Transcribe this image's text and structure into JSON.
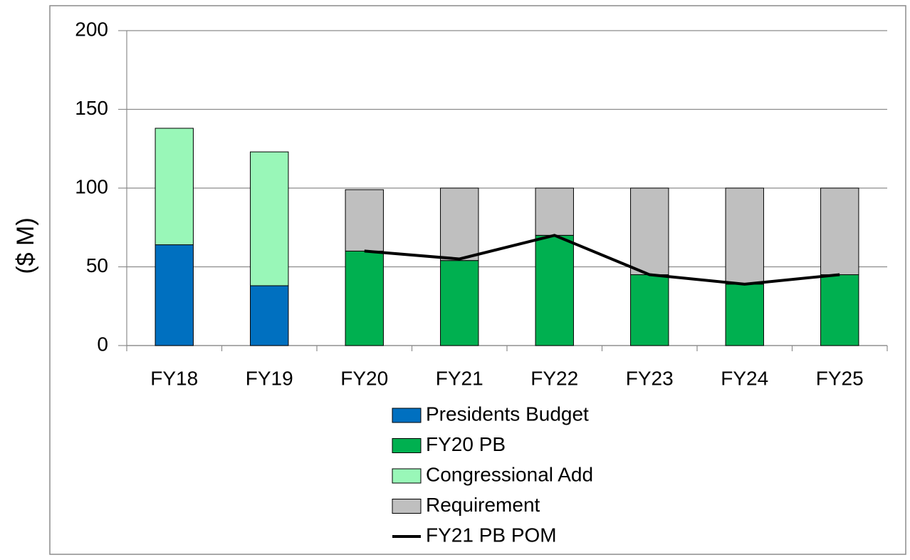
{
  "chart_data": {
    "type": "bar",
    "stacked": true,
    "y_label": "($ M)",
    "categories": [
      "FY18",
      "FY19",
      "FY20",
      "FY21",
      "FY22",
      "FY23",
      "FY24",
      "FY25"
    ],
    "series": [
      {
        "name": "Presidents Budget",
        "color": "#0070c0",
        "values": [
          64,
          38,
          null,
          null,
          null,
          null,
          null,
          null
        ]
      },
      {
        "name": "FY20 PB",
        "color": "#00b050",
        "values": [
          null,
          null,
          60,
          54,
          70,
          45,
          39,
          45
        ]
      },
      {
        "name": "Congressional Add",
        "color": "#99f7b8",
        "values": [
          74,
          85,
          null,
          null,
          null,
          null,
          null,
          null
        ]
      },
      {
        "name": "Requirement",
        "color": "#bfbfbf",
        "values": [
          null,
          null,
          39,
          46,
          30,
          55,
          61,
          55
        ]
      },
      {
        "name": "FY21 PB POM",
        "color": "#000000",
        "type": "line",
        "values": [
          null,
          null,
          60,
          55,
          70,
          45,
          39,
          45
        ]
      }
    ],
    "ylim": [
      0,
      200
    ],
    "yticks": [
      0,
      50,
      100,
      150,
      200
    ],
    "grid": true,
    "legend": "bottom"
  }
}
